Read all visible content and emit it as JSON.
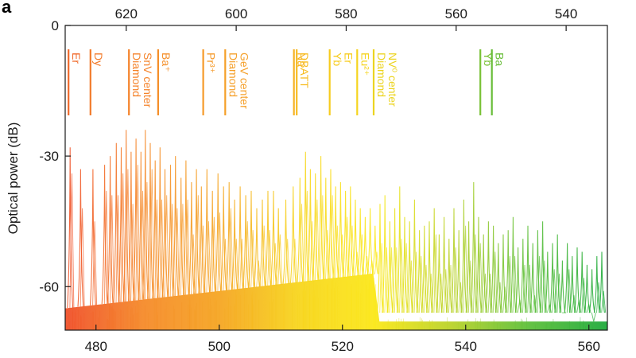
{
  "chart_data": {
    "type": "line",
    "panel_label": "a",
    "ylabel": "Optical power (dB)",
    "x_bottom": {
      "label": "",
      "range": [
        475,
        563
      ],
      "ticks": [
        480,
        500,
        520,
        540,
        560
      ],
      "tick_labels": [
        "480",
        "500",
        "520",
        "540",
        "560"
      ]
    },
    "x_top": {
      "label": "",
      "range": [
        631.1,
        532.5
      ],
      "ticks": [
        620,
        600,
        580,
        560,
        540
      ],
      "tick_labels": [
        "620",
        "600",
        "580",
        "560",
        "540"
      ]
    },
    "y": {
      "range": [
        -70,
        0
      ],
      "ticks": [
        0,
        -30,
        -60
      ],
      "tick_labels": [
        "0",
        "-30",
        "-60"
      ]
    },
    "color_gradient": [
      "#f0502a",
      "#f58a2a",
      "#f5a623",
      "#f7d51e",
      "#fbe81a",
      "#b9d22a",
      "#5cbf3a",
      "#1faa3c"
    ],
    "markers": [
      {
        "name": "Er",
        "wavelength_nm": 630.5,
        "label_lines": [
          "Er"
        ],
        "color": "#f06a2a"
      },
      {
        "name": "Dy",
        "wavelength_nm": 626.5,
        "label_lines": [
          "Dy"
        ],
        "color": "#f27a2a"
      },
      {
        "name": "Diamond SnV center",
        "wavelength_nm": 619.5,
        "label_lines": [
          "Diamond",
          "SnV center"
        ],
        "color": "#f5832a"
      },
      {
        "name": "Ba+",
        "wavelength_nm": 614.2,
        "label_lines": [
          "Ba⁺"
        ],
        "color": "#f58f2a"
      },
      {
        "name": "Pr3+",
        "wavelength_nm": 606.0,
        "label_lines": [
          "Pr³⁺"
        ],
        "color": "#f59a2a"
      },
      {
        "name": "Diamond GeV center",
        "wavelength_nm": 602.0,
        "label_lines": [
          "Diamond",
          "GeV center"
        ],
        "color": "#f5a02a"
      },
      {
        "name": "Na",
        "wavelength_nm": 589.5,
        "label_lines": [
          "Na"
        ],
        "color": "#f6b224"
      },
      {
        "name": "DBATT",
        "wavelength_nm": 589.0,
        "label_lines": [
          "DBATT"
        ],
        "color": "#f7bc20"
      },
      {
        "name": "Yb Er",
        "wavelength_nm": 583.0,
        "label_lines": [
          "Yb",
          "Er"
        ],
        "color": "#f7cc1e"
      },
      {
        "name": "Eu2+",
        "wavelength_nm": 578.0,
        "label_lines": [
          "Eu²⁺"
        ],
        "color": "#f5d41e"
      },
      {
        "name": "Diamond NV0 center",
        "wavelength_nm": 575.0,
        "label_lines": [
          "Diamond",
          "NV⁰ center"
        ],
        "color": "#ecd420"
      },
      {
        "name": "Yb",
        "wavelength_nm": 555.6,
        "label_lines": [
          "Yb"
        ],
        "color": "#79c236"
      },
      {
        "name": "Ba",
        "wavelength_nm": 553.5,
        "label_lines": [
          "Ba"
        ],
        "color": "#68bd38"
      }
    ],
    "peak_series": {
      "x": [
        475.8,
        477.5,
        479.5,
        481.4,
        482.3,
        483.3,
        484.1,
        484.9,
        485.7,
        486.5,
        487.3,
        488.0,
        488.8,
        489.6,
        490.4,
        491.2,
        492.1,
        492.9,
        493.8,
        494.6,
        495.5,
        496.3,
        497.1,
        498.0,
        498.9,
        499.8,
        500.7,
        501.6,
        502.5,
        503.4,
        504.3,
        505.2,
        506.1,
        507.0,
        507.9,
        508.8,
        509.6,
        510.8,
        512.0,
        513.1,
        514.0,
        514.8,
        515.6,
        516.5,
        517.3,
        518.1,
        518.9,
        519.7,
        520.5,
        521.3,
        522.1,
        522.9,
        523.7,
        524.5,
        525.3,
        526.1,
        526.9,
        527.7,
        528.5,
        529.3,
        530.1,
        530.9,
        531.7,
        532.5,
        533.3,
        534.1,
        534.9,
        535.7,
        536.5,
        537.3,
        538.1,
        538.9,
        539.7,
        540.5,
        541.3,
        542.1,
        542.9,
        543.7,
        544.5,
        545.3,
        546.1,
        546.9,
        547.7,
        548.5,
        549.3,
        550.1,
        550.9,
        551.7,
        552.5,
        553.3,
        554.1,
        554.9,
        555.7,
        556.5,
        557.3,
        558.1,
        558.9,
        559.7,
        560.5,
        561.3,
        562.1
      ],
      "peak_db": [
        -28,
        -33,
        -33,
        -32,
        -30,
        -27,
        -28,
        -24,
        -29,
        -26,
        -29,
        -24,
        -27,
        -31,
        -28,
        -33,
        -32,
        -30,
        -35,
        -31,
        -36,
        -33,
        -37,
        -33,
        -38,
        -34,
        -37,
        -36,
        -40,
        -37,
        -39,
        -38,
        -42,
        -40,
        -38,
        -38,
        -42,
        -40,
        -37,
        -35,
        -29,
        -33,
        -34,
        -30,
        -35,
        -33,
        -37,
        -36,
        -38,
        -37,
        -40,
        -42,
        -44,
        -42,
        -46,
        -41,
        -39,
        -45,
        -42,
        -37,
        -44,
        -45,
        -40,
        -47,
        -46,
        -45,
        -42,
        -48,
        -44,
        -49,
        -42,
        -47,
        -40,
        -45,
        -36,
        -44,
        -48,
        -45,
        -46,
        -50,
        -48,
        -47,
        -44,
        -51,
        -49,
        -46,
        -50,
        -47,
        -45,
        -52,
        -50,
        -48,
        -54,
        -50,
        -53,
        -51,
        -52,
        -55,
        -56,
        -53,
        -52
      ]
    },
    "noise_floor": {
      "x": [
        475,
        525,
        526,
        563
      ],
      "db": [
        -65,
        -57,
        -68,
        -68
      ]
    }
  }
}
